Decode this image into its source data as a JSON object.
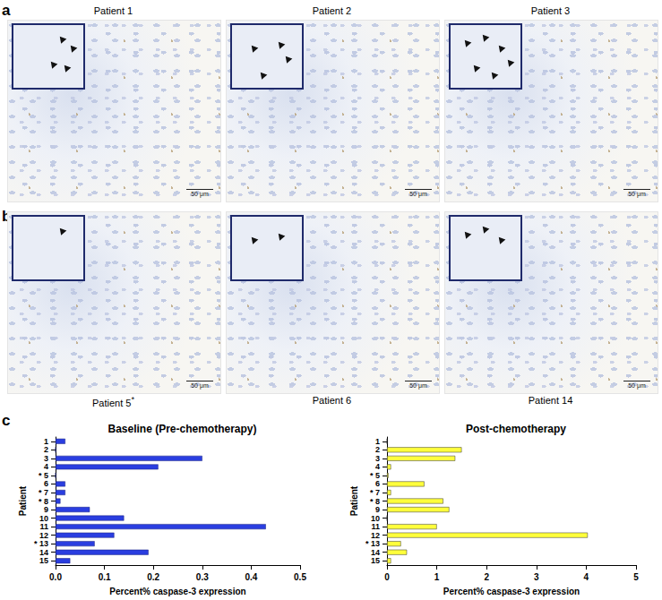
{
  "panels": [
    {
      "label": "a",
      "images": [
        {
          "caption": "Patient 1",
          "scale_bar": "50 μm"
        },
        {
          "caption": "Patient 2",
          "scale_bar": "50 μm"
        },
        {
          "caption": "Patient 3",
          "scale_bar": "50 μm"
        }
      ]
    },
    {
      "label": "b",
      "images": [
        {
          "caption": "Patient 5",
          "superscript": "*",
          "scale_bar": "50 μm"
        },
        {
          "caption": "Patient 6",
          "scale_bar": "50 μm"
        },
        {
          "caption": "Patient 14",
          "scale_bar": "50 μm"
        }
      ]
    }
  ],
  "chart_panel": "c",
  "chart_data": [
    {
      "type": "bar",
      "title": "Baseline (Pre-chemotherapy)",
      "orientation": "horizontal",
      "categories": [
        "1",
        "2",
        "3",
        "4",
        "* 5",
        "6",
        "* 7",
        "* 8",
        "9",
        "10",
        "11",
        "12",
        "* 13",
        "14",
        "15"
      ],
      "values": [
        0.02,
        0,
        0.3,
        0.21,
        0,
        0.02,
        0.02,
        0.01,
        0.07,
        0.14,
        0.43,
        0.12,
        0.08,
        0.19,
        0.03
      ],
      "color": "#2a3ee0",
      "x_label": "Percent% caspase-3 expression",
      "y_label": "Patient",
      "xlim": [
        0,
        0.5
      ],
      "xticks": [
        {
          "value": 0,
          "label": "0.0"
        },
        {
          "value": 0.1,
          "label": "0.1"
        },
        {
          "value": 0.2,
          "label": "0.2"
        },
        {
          "value": 0.3,
          "label": "0.3"
        },
        {
          "value": 0.4,
          "label": "0.4"
        },
        {
          "value": 0.5,
          "label": "0.5"
        }
      ],
      "grid": false
    },
    {
      "type": "bar",
      "title": "Post-chemotherapy",
      "orientation": "horizontal",
      "categories": [
        "1",
        "2",
        "3",
        "4",
        "* 5",
        "6",
        "* 7",
        "* 8",
        "9",
        "10",
        "11",
        "12",
        "* 13",
        "14",
        "15"
      ],
      "values": [
        0,
        1.5,
        1.37,
        0.08,
        0.03,
        0.75,
        0.08,
        1.13,
        1.25,
        0,
        1.0,
        4.03,
        0.28,
        0.4,
        0.08
      ],
      "color": "#ffff3c",
      "x_label": "Percent% caspase-3 expression",
      "y_label": "Patient",
      "xlim": [
        0,
        5
      ],
      "xticks": [
        0,
        1,
        2,
        3,
        4,
        5
      ],
      "grid": false
    }
  ]
}
